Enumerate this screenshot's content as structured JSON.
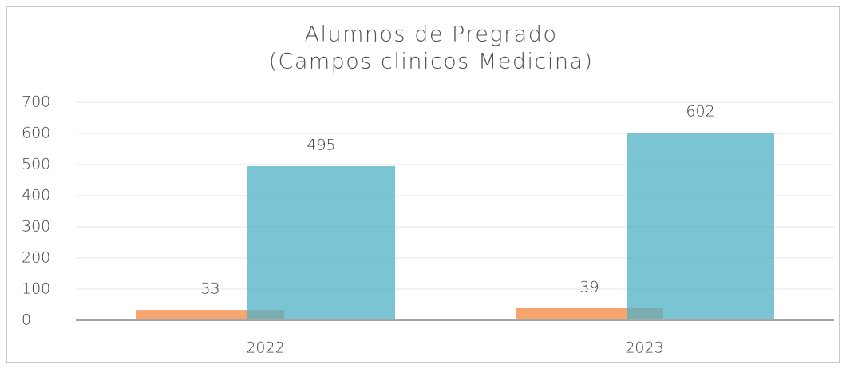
{
  "chart_data": {
    "type": "bar",
    "title": "Alumnos de Pregrado",
    "subtitle": "(Campos clinicos Medicina)",
    "categories": [
      "2022",
      "2023"
    ],
    "series": [
      {
        "color": "#f6a56e",
        "values": [
          33,
          39
        ]
      },
      {
        "color": "#4fb0c6",
        "values": [
          495,
          602
        ]
      }
    ],
    "ylim": [
      0,
      700
    ],
    "yticks": [
      0,
      100,
      200,
      300,
      400,
      500,
      600,
      700
    ],
    "grid": true
  }
}
